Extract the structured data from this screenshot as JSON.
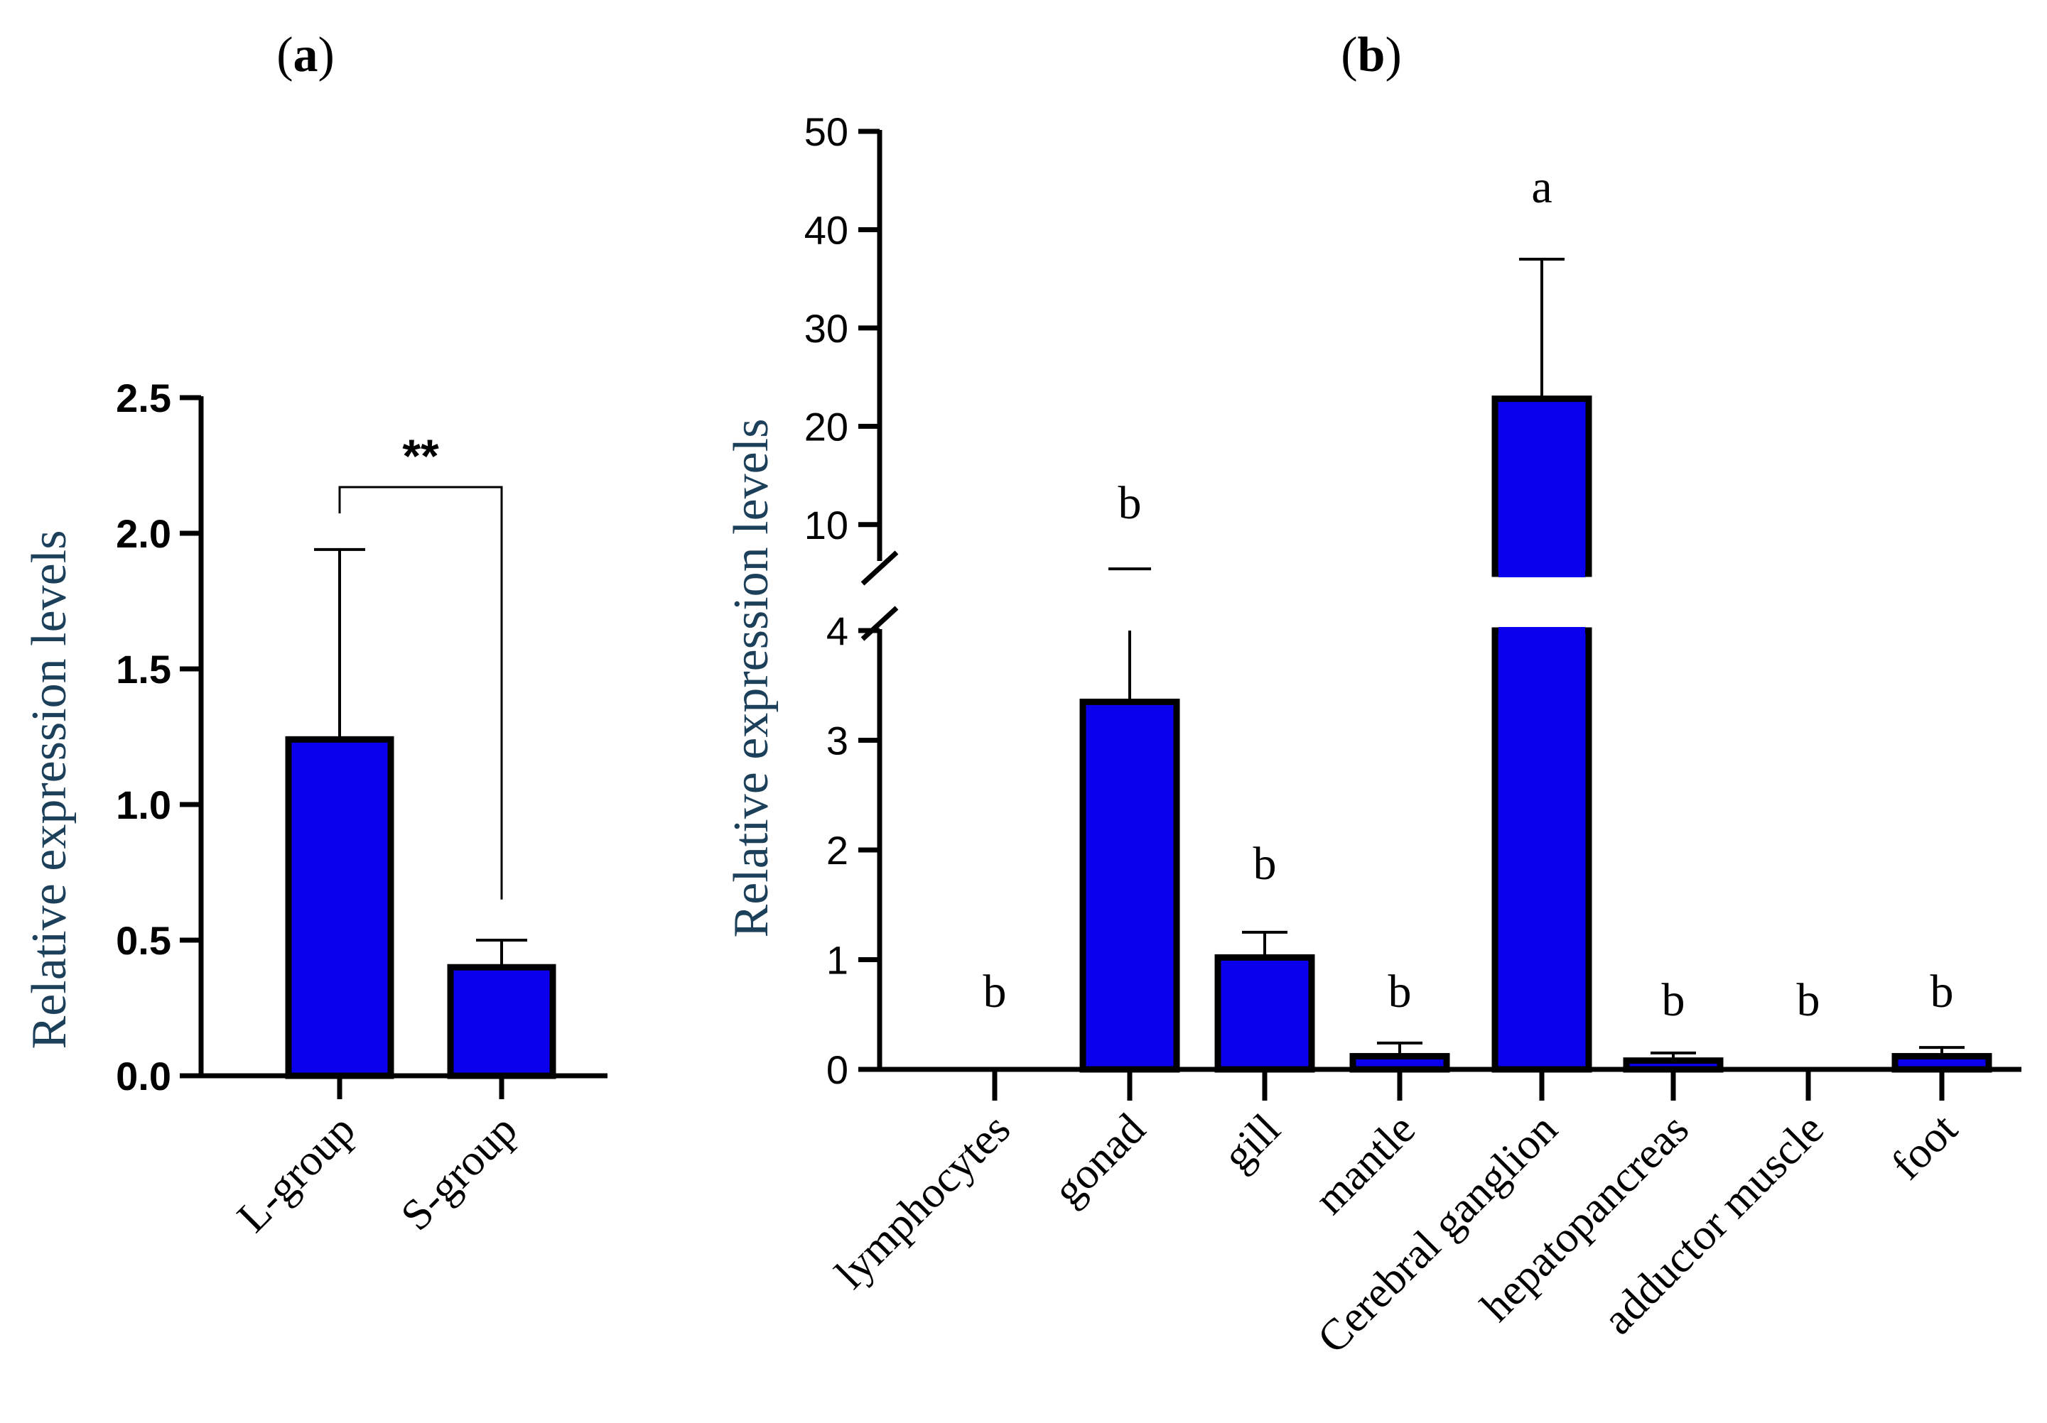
{
  "colors": {
    "bar_fill": "#0a00ee",
    "bar_stroke": "#000000",
    "axis": "#000000",
    "ytitle": "#1c3f5a"
  },
  "chart_data": [
    {
      "type": "bar",
      "panel_label": "a",
      "ylabel": "Relative expression levels",
      "ylim": [
        0,
        2.5
      ],
      "yticks": [
        "0.0",
        "0.5",
        "1.0",
        "1.5",
        "2.0",
        "2.5"
      ],
      "categories": [
        "L-group",
        "S-group"
      ],
      "values": [
        1.24,
        0.4
      ],
      "errors": [
        0.7,
        0.1
      ],
      "significance": "**"
    },
    {
      "type": "bar",
      "panel_label": "b",
      "ylabel": "Relative expression levels",
      "axis_break": {
        "lower_max": 4,
        "upper_min": 5,
        "upper_max": 50
      },
      "yticks_lower": [
        "0",
        "1",
        "2",
        "3",
        "4"
      ],
      "yticks_upper": [
        "10",
        "20",
        "30",
        "40",
        "50"
      ],
      "categories": [
        "lymphocytes",
        "gonad",
        "gill",
        "mantle",
        "Cerebral ganglion",
        "hepatopancreas",
        "adductor muscle",
        "foot"
      ],
      "values": [
        0,
        3.35,
        1.02,
        0.12,
        22.8,
        0.08,
        0,
        0.12
      ],
      "errors": [
        0,
        0.65,
        0.23,
        0.12,
        14.2,
        0.07,
        0,
        0.08
      ],
      "gonad_upper_cap": 5.5,
      "letters": [
        "b",
        "b",
        "b",
        "b",
        "a",
        "b",
        "b",
        "b"
      ]
    }
  ]
}
